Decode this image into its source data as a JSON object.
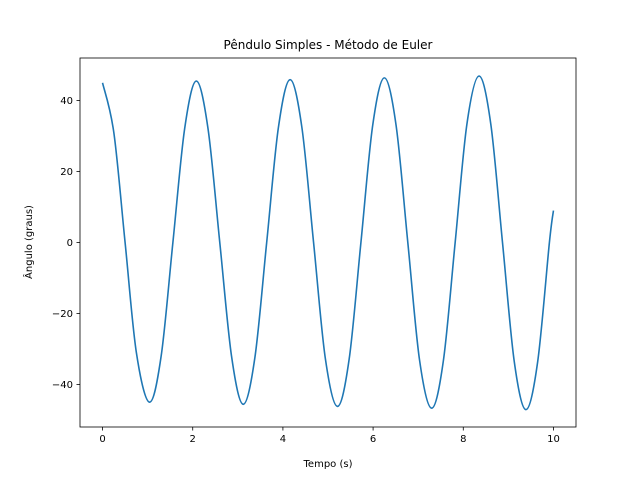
{
  "chart_data": {
    "type": "line",
    "title": "Pêndulo Simples - Método de Euler",
    "xlabel": "Tempo (s)",
    "ylabel": "Ângulo (graus)",
    "xlim": [
      -0.5,
      10.5
    ],
    "ylim": [
      -52,
      52
    ],
    "xticks": [
      0,
      2,
      4,
      6,
      8,
      10
    ],
    "xtick_labels": [
      "0",
      "2",
      "4",
      "6",
      "8",
      "10"
    ],
    "yticks": [
      -40,
      -20,
      0,
      20,
      40
    ],
    "ytick_labels": [
      "−40",
      "−20",
      "0",
      "20",
      "40"
    ],
    "grid": false,
    "series": [
      {
        "color": "#1f77b4",
        "x": [
          0,
          0.25,
          0.5,
          0.75,
          1.04,
          1.3,
          1.56,
          1.82,
          2.08,
          2.34,
          2.6,
          2.86,
          3.12,
          3.38,
          3.64,
          3.9,
          4.16,
          4.42,
          4.68,
          4.94,
          5.21,
          5.47,
          5.73,
          5.99,
          6.25,
          6.51,
          6.77,
          7.03,
          7.3,
          7.56,
          7.82,
          8.08,
          8.35,
          8.61,
          8.87,
          9.13,
          9.39,
          9.65,
          9.91,
          10.0
        ],
        "y": [
          45,
          31,
          0,
          -31,
          -45,
          -32,
          0,
          32,
          45.5,
          32,
          0,
          -32,
          -45.6,
          -32.3,
          0,
          32.4,
          45.9,
          32.5,
          0,
          -32.6,
          -46.2,
          -32.8,
          0,
          32.9,
          46.4,
          33,
          0,
          -33.1,
          -46.7,
          -33.2,
          0,
          33.3,
          46.9,
          33.4,
          0,
          -33.5,
          -47.1,
          -33.6,
          0,
          9
        ]
      }
    ]
  }
}
